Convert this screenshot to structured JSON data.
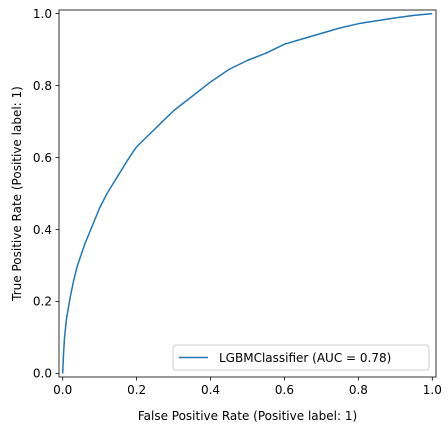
{
  "chart_data": {
    "type": "line",
    "xlabel": "False Positive Rate (Positive label: 1)",
    "ylabel": "True Positive Rate (Positive label: 1)",
    "xlim": [
      0.0,
      1.0
    ],
    "ylim": [
      0.0,
      1.0
    ],
    "xticks": [
      "0.0",
      "0.2",
      "0.4",
      "0.6",
      "0.8",
      "1.0"
    ],
    "yticks": [
      "0.0",
      "0.2",
      "0.4",
      "0.6",
      "0.8",
      "1.0"
    ],
    "grid": false,
    "legend_position": "lower-right",
    "colors": {
      "series": "#1f77b4"
    },
    "series": [
      {
        "name": "LGBMClassifier (AUC = 0.78)",
        "x": [
          0.0,
          0.002,
          0.005,
          0.01,
          0.015,
          0.02,
          0.03,
          0.04,
          0.05,
          0.06,
          0.08,
          0.1,
          0.12,
          0.15,
          0.18,
          0.2,
          0.25,
          0.3,
          0.35,
          0.4,
          0.45,
          0.5,
          0.55,
          0.6,
          0.65,
          0.7,
          0.75,
          0.8,
          0.85,
          0.9,
          0.95,
          1.0
        ],
        "y": [
          0.0,
          0.05,
          0.1,
          0.15,
          0.18,
          0.21,
          0.26,
          0.3,
          0.33,
          0.36,
          0.41,
          0.46,
          0.5,
          0.55,
          0.6,
          0.63,
          0.68,
          0.73,
          0.77,
          0.81,
          0.845,
          0.87,
          0.89,
          0.915,
          0.93,
          0.945,
          0.96,
          0.972,
          0.98,
          0.988,
          0.995,
          1.0
        ]
      }
    ]
  }
}
